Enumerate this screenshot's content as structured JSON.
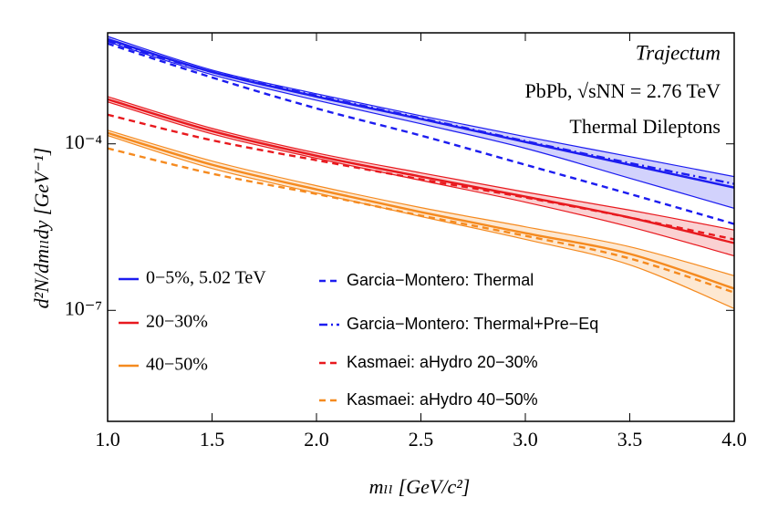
{
  "chart_data": {
    "type": "line",
    "log_y": true,
    "xlabel": "mₗₗ [GeV/c²]",
    "ylabel": "d²N/dmₗₗdy [GeV⁻¹]",
    "annotations": [
      "Trajectum",
      "PbPb, √sNN = 2.76 TeV",
      "Thermal Dileptons"
    ],
    "x": [
      1,
      1.5,
      2,
      2.5,
      3,
      3.5,
      4
    ],
    "xlim": [
      1,
      4
    ],
    "xticks": [
      {
        "value": 1,
        "label": "1.0"
      },
      1.5,
      {
        "value": 2,
        "label": "2.0"
      },
      2.5,
      {
        "value": 3,
        "label": "3.0"
      },
      3.5,
      {
        "value": 4,
        "label": "4.0"
      }
    ],
    "ylim": [
      1e-09,
      0.01
    ],
    "yticks": [
      {
        "value": 0.0001,
        "label": "10⁻⁴"
      },
      {
        "value": 1e-07,
        "label": "10⁻⁷"
      }
    ],
    "series": [
      {
        "name": "0−5%, 5.02 TeV",
        "color": "#1c1cf0",
        "dash": "solid",
        "values": [
          0.0077,
          0.00197,
          0.00071,
          0.00028,
          0.000108,
          4.2e-05,
          1.63e-05
        ],
        "high": [
          0.0086,
          0.00213,
          0.000798,
          0.00032,
          0.000135,
          5.9e-05,
          2.57e-05
        ],
        "low": [
          0.0069,
          0.00176,
          0.00061,
          0.00023,
          8.3e-05,
          2.4e-05,
          6.9e-06
        ]
      },
      {
        "name": "20−30%",
        "color": "#e8191e",
        "dash": "solid",
        "values": [
          0.000635,
          0.00017,
          6.1e-05,
          2.57e-05,
          1.12e-05,
          4.7e-06,
          1.63e-06
        ],
        "high": [
          0.00071,
          0.00019,
          6.85e-05,
          3e-05,
          1.35e-05,
          6.4e-06,
          2.8e-06
        ],
        "low": [
          0.00057,
          0.000151,
          5.5e-05,
          2.2e-05,
          8.9e-06,
          3.2e-06,
          9.6e-07
        ]
      },
      {
        "name": "40−50%",
        "color": "#f58a1f",
        "dash": "solid",
        "values": [
          0.000157,
          4.2e-05,
          1.51e-05,
          5.9e-06,
          2.47e-06,
          1.04e-06,
          2.47e-07
        ],
        "high": [
          0.000176,
          4.9e-05,
          1.76e-05,
          7.1e-06,
          3.2e-06,
          1.4e-06,
          4.2e-07
        ],
        "low": [
          0.000141,
          3.6e-05,
          1.3e-05,
          4.9e-06,
          1.9e-06,
          6.6e-07,
          1.08e-07
        ]
      },
      {
        "name": "Garcia−Montero: Thermal",
        "color": "#1c1cf0",
        "dash": "dashed",
        "values": [
          0.0064,
          0.00157,
          0.000435,
          0.000141,
          4.2e-05,
          1.25e-05,
          3.6e-06
        ]
      },
      {
        "name": "Garcia−Montero: Thermal+Pre−Eq",
        "color": "#1c1cf0",
        "dash": "dashdot",
        "values": [
          0.0071,
          0.00197,
          0.00074,
          0.00029,
          0.000112,
          4.5e-05,
          1.9e-05
        ]
      },
      {
        "name": "Kasmaei: aHydro 20−30%",
        "color": "#e8191e",
        "dash": "dashed",
        "values": [
          0.000335,
          0.000116,
          5.07e-05,
          2.3e-05,
          1.08e-05,
          4.7e-06,
          1.9e-06
        ]
      },
      {
        "name": "Kasmaei: aHydro 40−50%",
        "color": "#f58a1f",
        "dash": "dashed",
        "values": [
          8.3e-05,
          2.9e-05,
          1.25e-05,
          5.1e-06,
          2.2e-06,
          8.6e-07,
          2.1e-07
        ]
      }
    ]
  }
}
